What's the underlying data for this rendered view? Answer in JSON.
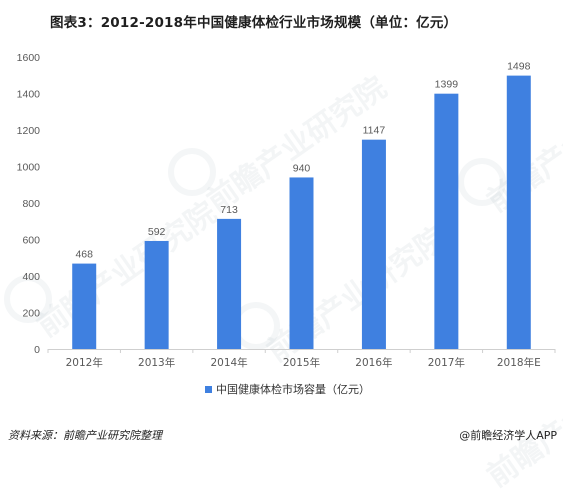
{
  "title": "图表3：2012-2018年中国健康体检行业市场规模（单位：亿元）",
  "source": "资料来源：前瞻产业研究院整理",
  "brand": "@前瞻经济学人APP",
  "watermark_text": "前瞻产业研究院",
  "colors": {
    "bar": "#3f80e0",
    "axis": "#cfcfcf",
    "tick": "#595959"
  },
  "chart_data": {
    "type": "bar",
    "categories": [
      "2012年",
      "2013年",
      "2014年",
      "2015年",
      "2016年",
      "2017年",
      "2018年E"
    ],
    "series": [
      {
        "name": "中国健康体检市场容量（亿元）",
        "values": [
          468,
          592,
          713,
          940,
          1147,
          1399,
          1498
        ]
      }
    ],
    "ylim": [
      0,
      1600
    ],
    "yticks": [
      0,
      200,
      400,
      600,
      800,
      1000,
      1200,
      1400,
      1600
    ],
    "data_labels": true,
    "legend_position": "bottom",
    "grid": false
  }
}
